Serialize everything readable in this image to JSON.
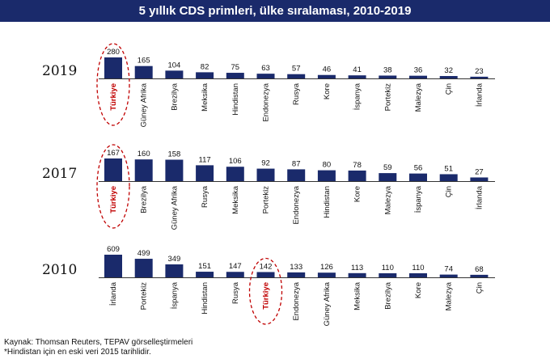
{
  "title": "5 yıllık CDS primleri, ülke sıralaması, 2010-2019",
  "highlight_color": "#c00000",
  "bar_color": "#1a2a6b",
  "chart_data": [
    {
      "type": "bar",
      "year_label": "2019",
      "highlight": "Türkiye",
      "categories": [
        "Türkiye",
        "Güney Afrika",
        "Brezilya",
        "Meksika",
        "Hindistan",
        "Endonezya",
        "Rusya",
        "Kore",
        "İspanya",
        "Portekiz",
        "Malezya",
        "Çin",
        "İrlanda"
      ],
      "values": [
        280,
        165,
        104,
        82,
        75,
        63,
        57,
        46,
        41,
        38,
        36,
        32,
        23
      ]
    },
    {
      "type": "bar",
      "year_label": "2017",
      "highlight": "Türkiye",
      "categories": [
        "Türkiye",
        "Brezilya",
        "Güney Afrika",
        "Rusya",
        "Meksika",
        "Portekiz",
        "Endonezya",
        "Hindistan",
        "Kore",
        "Malezya",
        "İspanya",
        "Çin",
        "İrlanda"
      ],
      "values": [
        167,
        160,
        158,
        117,
        106,
        92,
        87,
        80,
        78,
        59,
        56,
        51,
        27
      ]
    },
    {
      "type": "bar",
      "year_label": "2010",
      "highlight": "Türkiye",
      "categories": [
        "İrlanda",
        "Portekiz",
        "İspanya",
        "Hindistan",
        "Rusya",
        "Türkiye",
        "Endonezya",
        "Güney Afrika",
        "Meksika",
        "Brezilya",
        "Kore",
        "Malezya",
        "Çin"
      ],
      "values": [
        609,
        499,
        349,
        151,
        147,
        142,
        133,
        126,
        113,
        110,
        110,
        74,
        68
      ]
    }
  ],
  "footer": {
    "source": "Kaynak: Thomsan Reuters, TEPAV görselleştirmeleri",
    "note": "*Hindistan için en eski veri 2015 tarihlidir."
  }
}
